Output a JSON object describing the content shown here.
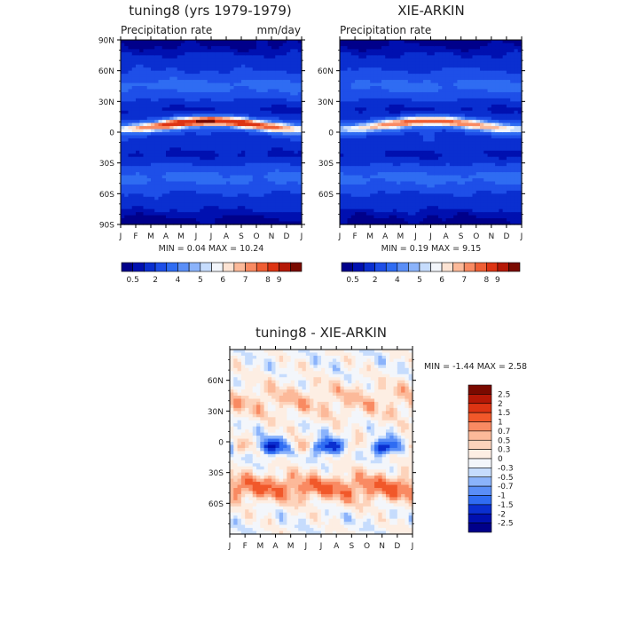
{
  "chart_data": [
    {
      "id": "model",
      "type": "contour",
      "title": "tuning8 (yrs 1979-1979)",
      "subtitle_left": "Precipitation rate",
      "subtitle_right": "mm/day",
      "x_ticks": [
        "J",
        "F",
        "M",
        "A",
        "M",
        "J",
        "J",
        "A",
        "S",
        "O",
        "N",
        "D",
        "J"
      ],
      "y_ticks": [
        "90N",
        "60N",
        "30N",
        "0",
        "30S",
        "60S",
        "90S"
      ],
      "y_range": [
        -90,
        90
      ],
      "stats_text": "MIN =    0.04  MAX =    10.24",
      "min": 0.04,
      "max": 10.24,
      "colorbar": {
        "labels": [
          "0.5",
          "2",
          "4",
          "5",
          "6",
          "7",
          "8",
          "9"
        ],
        "levels": [
          0.5,
          1,
          2,
          3,
          4,
          4.5,
          5,
          5.5,
          6,
          6.5,
          7,
          7.5,
          8,
          9
        ],
        "colors": [
          "#00008a",
          "#0010b0",
          "#0a2fd0",
          "#1e4fe8",
          "#2f6cf2",
          "#5a8ef7",
          "#8bb3fb",
          "#c6dcfd",
          "#f3f6fb",
          "#fde3d3",
          "#fcb999",
          "#f98a62",
          "#ef5e34",
          "#dd3413",
          "#b51806",
          "#7a0a00"
        ]
      }
    },
    {
      "id": "obs",
      "type": "contour",
      "title": "XIE-ARKIN",
      "subtitle_left": "Precipitation rate",
      "x_ticks": [
        "J",
        "F",
        "M",
        "A",
        "M",
        "J",
        "J",
        "A",
        "S",
        "O",
        "N",
        "D",
        "J"
      ],
      "y_ticks": [
        "60N",
        "30N",
        "0",
        "30S",
        "60S"
      ],
      "y_range": [
        -90,
        90
      ],
      "stats_text": "MIN =    0.19  MAX =    9.15",
      "min": 0.19,
      "max": 9.15,
      "colorbar": {
        "labels": [
          "0.5",
          "2",
          "4",
          "5",
          "6",
          "7",
          "8",
          "9"
        ],
        "levels": [
          0.5,
          1,
          2,
          3,
          4,
          4.5,
          5,
          5.5,
          6,
          6.5,
          7,
          7.5,
          8,
          9
        ],
        "colors": [
          "#00008a",
          "#0010b0",
          "#0a2fd0",
          "#1e4fe8",
          "#2f6cf2",
          "#5a8ef7",
          "#8bb3fb",
          "#c6dcfd",
          "#f3f6fb",
          "#fde3d3",
          "#fcb999",
          "#f98a62",
          "#ef5e34",
          "#dd3413",
          "#b51806",
          "#7a0a00"
        ]
      }
    },
    {
      "id": "diff",
      "type": "contour",
      "title": "tuning8 - XIE-ARKIN",
      "x_ticks": [
        "J",
        "F",
        "M",
        "A",
        "M",
        "J",
        "J",
        "A",
        "S",
        "O",
        "N",
        "D",
        "J"
      ],
      "y_ticks": [
        "60N",
        "30N",
        "0",
        "30S",
        "60S"
      ],
      "y_range": [
        -90,
        90
      ],
      "stats_text": "MIN =   -1.44  MAX =    2.58",
      "min": -1.44,
      "max": 2.58,
      "colorbar": {
        "labels": [
          "2.5",
          "2",
          "1.5",
          "1",
          "0.7",
          "0.5",
          "0.3",
          "0",
          "-0.3",
          "-0.5",
          "-0.7",
          "-1",
          "-1.5",
          "-2",
          "-2.5"
        ],
        "levels": [
          2.5,
          2,
          1.5,
          1,
          0.7,
          0.5,
          0.3,
          0,
          -0.3,
          -0.5,
          -0.7,
          -1,
          -1.5,
          -2,
          -2.5
        ],
        "colors": [
          "#7a0a00",
          "#b51806",
          "#dd3413",
          "#f1582a",
          "#f98a62",
          "#fcb999",
          "#fdd3bb",
          "#fdeee3",
          "#f3f6fb",
          "#c6dcfd",
          "#8bb3fb",
          "#5a8ef7",
          "#2f6cf2",
          "#0a2fd0",
          "#0010b0",
          "#00008a"
        ]
      }
    }
  ]
}
